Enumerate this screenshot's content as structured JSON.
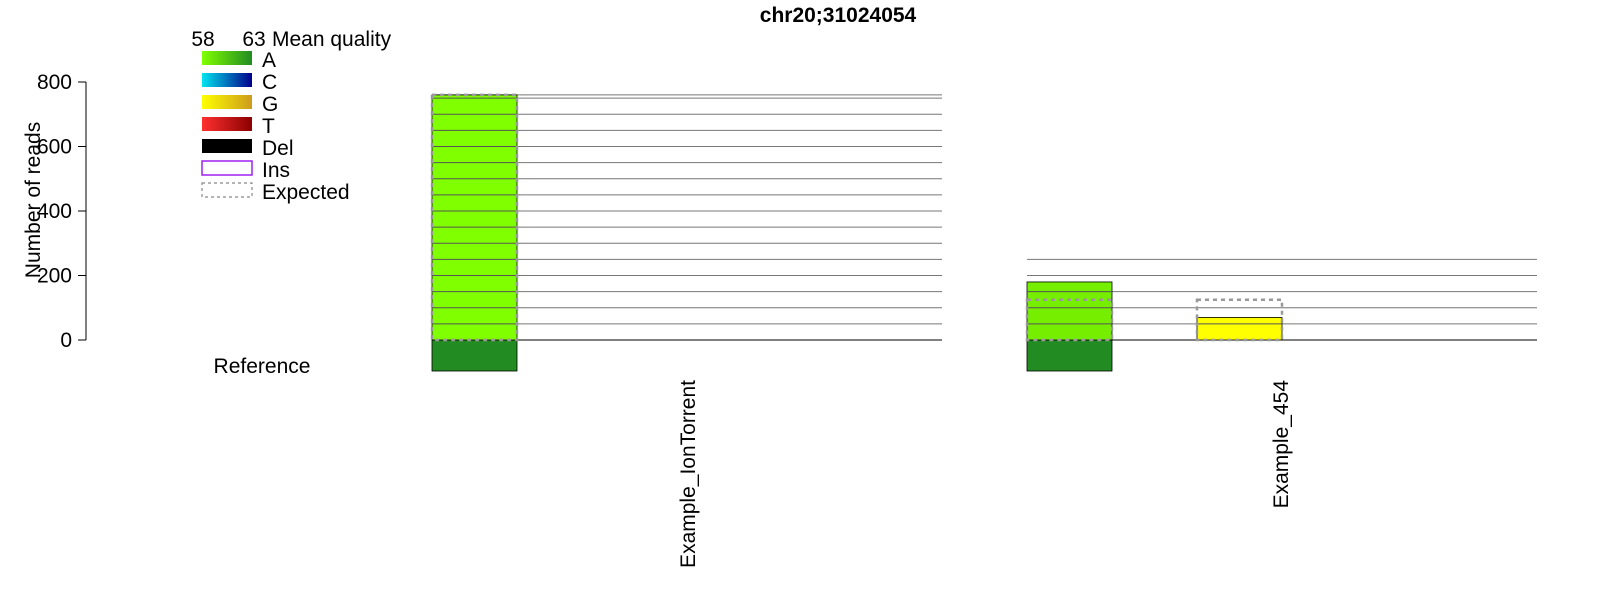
{
  "chart_data": {
    "type": "bar",
    "title": "chr20;31024054",
    "ylabel": "Number of reads",
    "ylim": [
      0,
      800
    ],
    "yticks": [
      0,
      200,
      400,
      600,
      800
    ],
    "reference_label": "Reference",
    "reference_base": "A",
    "legend": {
      "quality_min": "58",
      "quality_max": "63",
      "quality_title": "Mean quality",
      "entries": [
        {
          "label": "A",
          "colors": [
            "#80ff00",
            "#228b22"
          ]
        },
        {
          "label": "C",
          "colors": [
            "#00e5ee",
            "#00008b"
          ]
        },
        {
          "label": "G",
          "colors": [
            "#ffff00",
            "#cd9b1d"
          ]
        },
        {
          "label": "T",
          "colors": [
            "#ff3030",
            "#8b0000"
          ]
        },
        {
          "label": "Del",
          "colors": [
            "#000000",
            "#000000"
          ]
        },
        {
          "label": "Ins",
          "style": "outline",
          "color": "#a020f0"
        },
        {
          "label": "Expected",
          "style": "dashed",
          "color": "#888888"
        }
      ]
    },
    "gridline_step": 50,
    "samples": [
      {
        "name": "Example_IonTorrent",
        "total_reads": 760,
        "bars": [
          {
            "base": "A",
            "count": 760,
            "color": "#80ff00",
            "expected": 760
          }
        ]
      },
      {
        "name": "Example_454",
        "total_reads": 250,
        "bars": [
          {
            "base": "A",
            "count": 180,
            "color": "#76ee00",
            "expected": 125
          },
          {
            "base": "G",
            "count": 70,
            "color": "#ffff00",
            "expected": 125
          }
        ]
      }
    ]
  }
}
